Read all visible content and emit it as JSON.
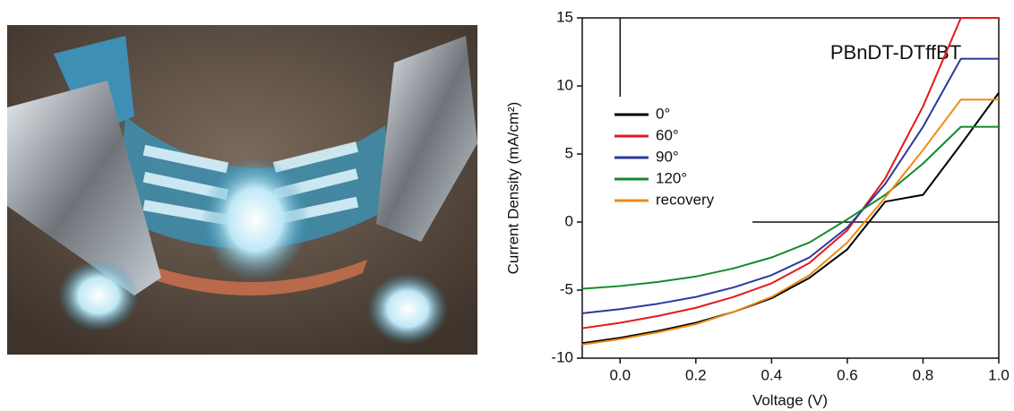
{
  "chart_data": {
    "type": "line",
    "annotation": "PBnDT-DTffBT",
    "x_label": "Voltage (V)",
    "y_label": "Current Density (mA/cm²)",
    "x": [
      -0.1,
      0,
      0.1,
      0.2,
      0.3,
      0.4,
      0.5,
      0.6,
      0.7,
      0.8,
      0.9,
      1.0
    ],
    "series": [
      {
        "name": "0°",
        "color": "#000000",
        "values": [
          -8.9,
          -8.5,
          -8.0,
          -7.4,
          -6.6,
          -5.6,
          -4.1,
          -2.0,
          1.5,
          2.0,
          5.7,
          9.5
        ]
      },
      {
        "name": "60°",
        "color": "#e3191c",
        "values": [
          -7.8,
          -7.4,
          -6.9,
          -6.3,
          -5.5,
          -4.5,
          -3.0,
          -0.6,
          3.2,
          8.5,
          15,
          15
        ]
      },
      {
        "name": "90°",
        "color": "#2b3a9b",
        "values": [
          -6.7,
          -6.4,
          -6.0,
          -5.5,
          -4.8,
          -3.9,
          -2.6,
          -0.4,
          2.8,
          7.0,
          12,
          12
        ]
      },
      {
        "name": "120°",
        "color": "#138a2e",
        "values": [
          -4.9,
          -4.7,
          -4.4,
          -4.0,
          -3.4,
          -2.6,
          -1.5,
          0.2,
          2.0,
          4.3,
          7.0,
          7.0
        ]
      },
      {
        "name": "recovery",
        "color": "#f08a12",
        "values": [
          -9.0,
          -8.6,
          -8.1,
          -7.5,
          -6.6,
          -5.5,
          -3.9,
          -1.5,
          1.8,
          5.3,
          9.0,
          9.0
        ]
      }
    ],
    "xlim": [
      -0.1,
      1.0
    ],
    "ylim": [
      -10,
      15
    ],
    "xticks": [
      {
        "value": 0,
        "label": "0.0"
      },
      0.2,
      0.4,
      0.6,
      0.8,
      {
        "value": 1,
        "label": "1.0"
      }
    ],
    "yticks": [
      -10,
      -5,
      0,
      5,
      10,
      15
    ],
    "legend": "upper left"
  }
}
